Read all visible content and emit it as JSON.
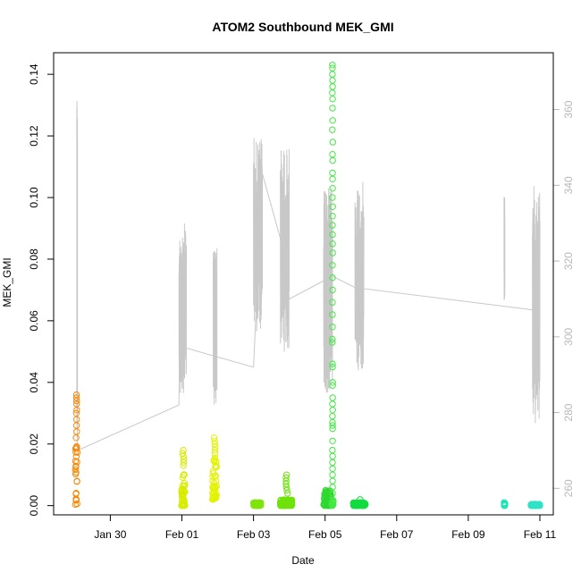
{
  "chart_data": {
    "type": "scatter",
    "title": "ATOM2 Southbound MEK_GMI",
    "xlabel": "Date",
    "ylabel": "MEK_GMI",
    "x_range_days": [
      "2014-01-28T10:00",
      "2014-02-11T09:00"
    ],
    "x_ticks": [
      {
        "date": "2014-01-30",
        "label": "Jan 30"
      },
      {
        "date": "2014-02-01",
        "label": "Feb 01"
      },
      {
        "date": "2014-02-03",
        "label": "Feb 03"
      },
      {
        "date": "2014-02-05",
        "label": "Feb 05"
      },
      {
        "date": "2014-02-07",
        "label": "Feb 07"
      },
      {
        "date": "2014-02-09",
        "label": "Feb 09"
      },
      {
        "date": "2014-02-11",
        "label": "Feb 11"
      }
    ],
    "y_left": {
      "range": [
        -0.003,
        0.147
      ],
      "ticks": [
        "0.00",
        "0.02",
        "0.04",
        "0.06",
        "0.08",
        "0.10",
        "0.12",
        "0.14"
      ]
    },
    "y_right": {
      "range": [
        253,
        375
      ],
      "ticks": [
        "260",
        "280",
        "300",
        "320",
        "340",
        "360"
      ],
      "color": "#b8b8b8"
    },
    "grid": false,
    "scatter_groups": [
      {
        "color": "#f58a0a",
        "x_start": "2014-01-29T00:30",
        "x_end": "2014-01-29T02:00",
        "y_min": 0.0,
        "y_max": 0.021,
        "outliers": [
          0.022,
          0.024,
          0.026,
          0.028,
          0.03,
          0.031,
          0.033,
          0.034,
          0.035,
          0.036
        ]
      },
      {
        "color": "#d8ec00",
        "x_start": "2014-01-31T23:40",
        "x_end": "2014-02-01T02:10",
        "y_min": 0.0,
        "y_max": 0.012,
        "outliers": [
          0.013,
          0.014,
          0.015,
          0.016,
          0.017,
          0.018
        ]
      },
      {
        "color": "#e2f200",
        "x_start": "2014-02-01T20:30",
        "x_end": "2014-02-01T23:30",
        "y_min": 0.002,
        "y_max": 0.016,
        "outliers": [
          0.017,
          0.018,
          0.019,
          0.02,
          0.021,
          0.022
        ]
      },
      {
        "color": "#7fe40a",
        "x_start": "2014-02-03T00:00",
        "x_end": "2014-02-03T05:00",
        "y_min": 0.0,
        "y_max": 0.001,
        "outliers": []
      },
      {
        "color": "#6ee20c",
        "x_start": "2014-02-03T18:00",
        "x_end": "2014-02-04T02:00",
        "y_min": 0.0,
        "y_max": 0.002,
        "outliers": [
          0.004,
          0.005,
          0.006,
          0.007,
          0.008,
          0.009,
          0.01
        ]
      },
      {
        "color": "#2ed82e",
        "x_start": "2014-02-04T23:00",
        "x_end": "2014-02-05T04:00",
        "y_min": 0.0,
        "y_max": 0.005,
        "outliers": []
      },
      {
        "color": "#44e844",
        "x_start": "2014-02-05T04:30",
        "x_end": "2014-02-05T05:30",
        "y_min": 0.0,
        "y_max": 0.002,
        "outliers": [
          0.004,
          0.006,
          0.008,
          0.01,
          0.012,
          0.014,
          0.016,
          0.018,
          0.021,
          0.025,
          0.026,
          0.027,
          0.029,
          0.031,
          0.033,
          0.035,
          0.039,
          0.04,
          0.045,
          0.046,
          0.053,
          0.054,
          0.058,
          0.062,
          0.066,
          0.07,
          0.074,
          0.078,
          0.082,
          0.085,
          0.088,
          0.091,
          0.094,
          0.097,
          0.1,
          0.103,
          0.106,
          0.108,
          0.112,
          0.114,
          0.118,
          0.122,
          0.125,
          0.129,
          0.132,
          0.134,
          0.136,
          0.138,
          0.14,
          0.142,
          0.143
        ]
      },
      {
        "color": "#12dc40",
        "x_start": "2014-02-05T19:00",
        "x_end": "2014-02-06T03:00",
        "y_min": 0.0,
        "y_max": 0.001,
        "outliers": [
          0.002
        ]
      },
      {
        "color": "#1ee6b4",
        "x_start": "2014-02-10T00:00",
        "x_end": "2014-02-10T00:40",
        "y_min": 0.0,
        "y_max": 0.001,
        "outliers": []
      },
      {
        "color": "#30e2c6",
        "x_start": "2014-02-10T18:00",
        "x_end": "2014-02-11T00:00",
        "y_min": 0.0,
        "y_max": 0.0005,
        "outliers": []
      }
    ],
    "line_series": {
      "color": "#c8c8c8",
      "axis": "right",
      "points": [
        [
          "2014-01-29T02:00",
          270
        ],
        [
          "2014-01-31T22:00",
          282
        ],
        [
          "2014-01-31T22:30",
          300
        ],
        [
          "2014-02-01T03:00",
          297
        ],
        [
          "2014-02-01T21:00",
          295
        ],
        [
          "2014-02-03T00:00",
          292
        ],
        [
          "2014-02-03T06:00",
          343
        ],
        [
          "2014-02-03T18:00",
          326
        ],
        [
          "2014-02-04T00:00",
          310
        ],
        [
          "2014-02-05T05:00",
          316
        ],
        [
          "2014-02-05T20:00",
          313
        ],
        [
          "2014-02-10T22:00",
          307
        ]
      ],
      "bursts": [
        {
          "x_start": "2014-01-29T01:30",
          "x_end": "2014-01-29T02:00",
          "min": 270,
          "max": 366
        },
        {
          "x_start": "2014-01-31T22:00",
          "x_end": "2014-02-01T03:00",
          "min": 285,
          "max": 330
        },
        {
          "x_start": "2014-02-01T21:00",
          "x_end": "2014-02-01T23:30",
          "min": 282,
          "max": 324
        },
        {
          "x_start": "2014-02-03T00:00",
          "x_end": "2014-02-03T06:00",
          "min": 301,
          "max": 353
        },
        {
          "x_start": "2014-02-03T18:00",
          "x_end": "2014-02-04T00:00",
          "min": 296,
          "max": 350
        },
        {
          "x_start": "2014-02-04T23:00",
          "x_end": "2014-02-05T05:00",
          "min": 285,
          "max": 340
        },
        {
          "x_start": "2014-02-05T20:00",
          "x_end": "2014-02-06T02:00",
          "min": 291,
          "max": 341
        },
        {
          "x_start": "2014-02-10T00:00",
          "x_end": "2014-02-10T00:30",
          "min": 309,
          "max": 337
        },
        {
          "x_start": "2014-02-10T19:00",
          "x_end": "2014-02-11T00:00",
          "min": 277,
          "max": 340
        }
      ]
    }
  }
}
